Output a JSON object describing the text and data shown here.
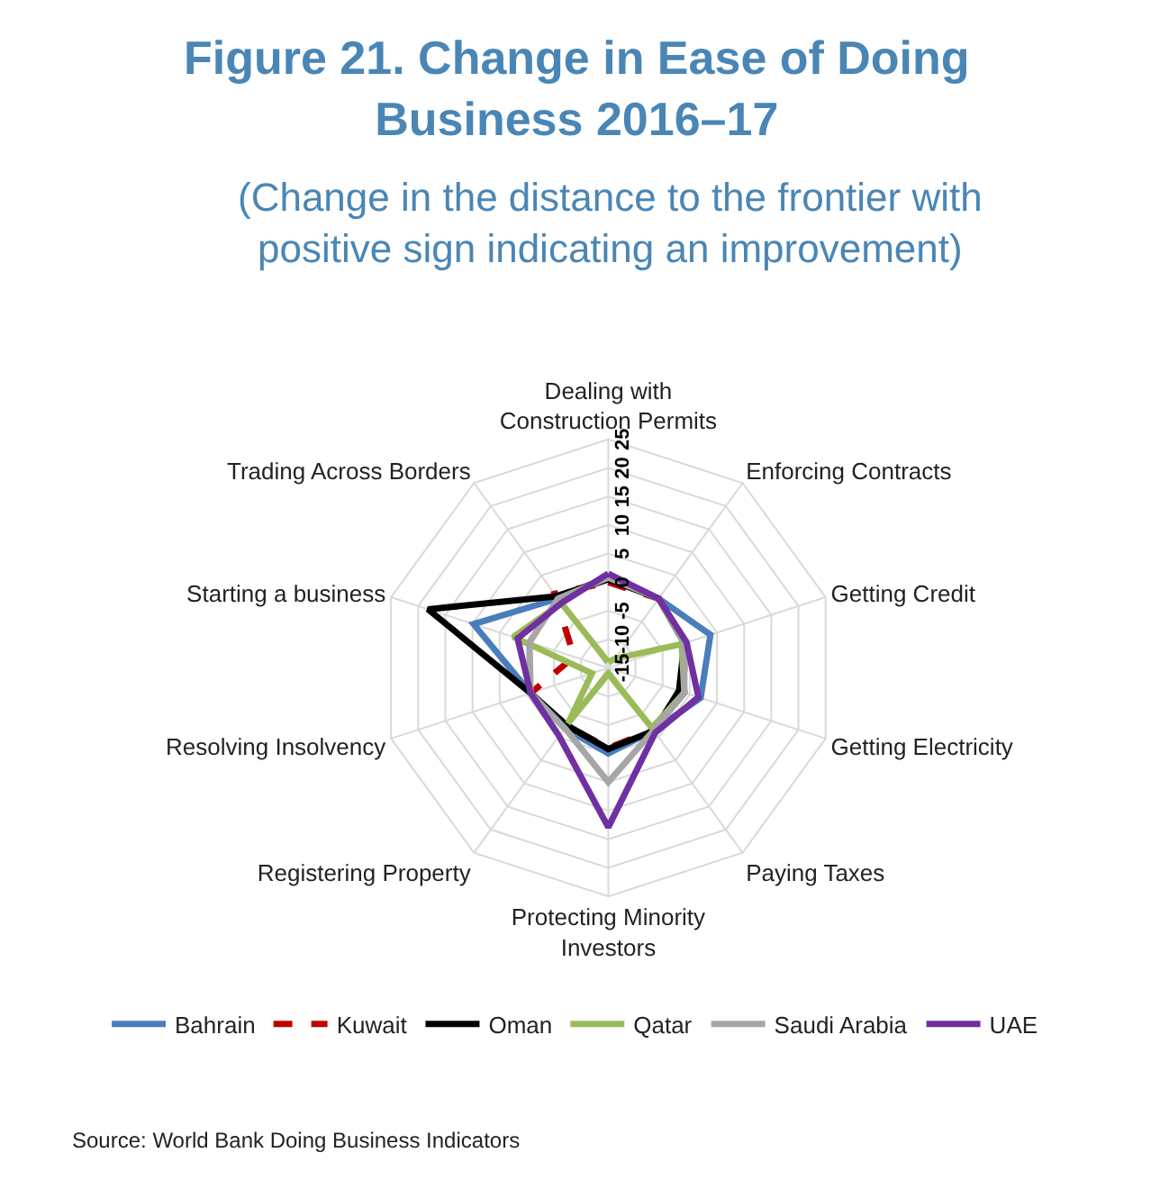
{
  "chart_data": {
    "type": "radar",
    "title": "Figure 21. Change in Ease of Doing Business 2016–17",
    "subtitle": "(Change in the distance to the frontier with positive sign indicating an improvement)",
    "categories": [
      "Dealing with Construction Permits",
      "Enforcing Contracts",
      "Getting Credit",
      "Getting Electricity",
      "Paying Taxes",
      "Protecting Minority Investors",
      "Registering Property",
      "Resolving Insolvency",
      "Starting a business",
      "Trading Across Borders"
    ],
    "series": [
      {
        "name": "Bahrain",
        "color": "#4a7ebb",
        "line_style": "solid",
        "values": [
          1,
          0,
          3.8,
          2,
          -1.5,
          0,
          -2,
          -0.7,
          9.8,
          0
        ]
      },
      {
        "name": "Kuwait",
        "color": "#c00000",
        "line_style": "dashed",
        "values": [
          0,
          0,
          -1,
          -1,
          -1.5,
          -1,
          -2.5,
          -0.7,
          -8.7,
          1
        ]
      },
      {
        "name": "Oman",
        "color": "#000000",
        "line_style": "solid",
        "values": [
          0.5,
          0,
          -1,
          -2,
          -1.4,
          -0.8,
          -2.6,
          -0.7,
          18.2,
          0.5
        ]
      },
      {
        "name": "Qatar",
        "color": "#9bbb59",
        "line_style": "solid",
        "values": [
          -14,
          -13,
          -1.5,
          -1,
          -2,
          -14,
          -3,
          -12,
          2.5,
          -1
        ]
      },
      {
        "name": "Saudi Arabia",
        "color": "#a6a6a6",
        "line_style": "solid",
        "values": [
          0.8,
          0,
          -1,
          -1,
          -1.5,
          5,
          -2,
          -0.7,
          -0.5,
          0
        ]
      },
      {
        "name": "UAE",
        "color": "#7030a0",
        "line_style": "solid",
        "values": [
          1.5,
          0,
          -0.6,
          1.6,
          -1,
          12.9,
          -0.3,
          -0.7,
          1.7,
          -1
        ]
      }
    ],
    "ylim": [
      -15,
      25
    ],
    "yticks": [
      -15,
      -10,
      -5,
      0,
      5,
      10,
      15,
      20,
      25
    ],
    "grid": true,
    "legend": "bottom",
    "marker": "none",
    "annotations": [
      "Source: World Bank Doing Business Indicators"
    ]
  }
}
